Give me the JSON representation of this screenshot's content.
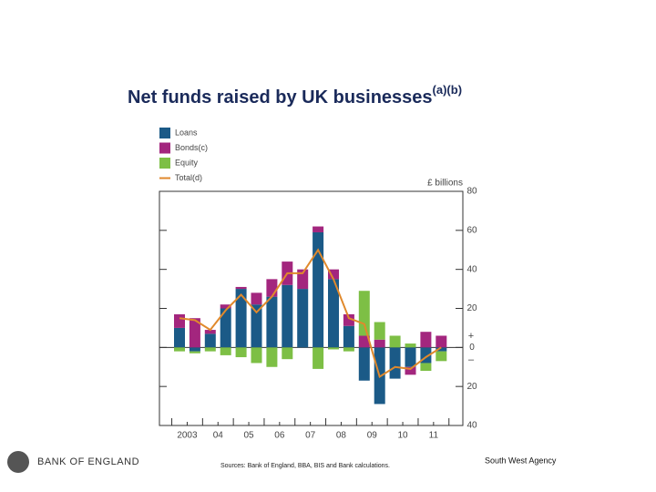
{
  "chart_data": {
    "type": "bar",
    "title": "Net funds raised by UK businesses",
    "title_note": "(a)(b)",
    "y_axis_label": "£ billions",
    "sign_labels": [
      "+",
      "–"
    ],
    "categories": [
      "2003",
      null,
      "04",
      null,
      "05",
      null,
      "06",
      null,
      "07",
      null,
      "08",
      null,
      "09",
      null,
      "10",
      null,
      "11",
      null
    ],
    "series": [
      {
        "name": "Loans",
        "type": "bar",
        "color": "#1b5a87",
        "values": [
          10,
          -2,
          7,
          20,
          30,
          22,
          26,
          32,
          30,
          59,
          35,
          11,
          -17,
          -29,
          -16,
          -10,
          -8,
          -2
        ]
      },
      {
        "name": "Bonds(c)",
        "type": "bar",
        "color": "#a3267e",
        "values": [
          7,
          15,
          2,
          2,
          1,
          6,
          9,
          12,
          10,
          3,
          5,
          6,
          6,
          4,
          0,
          -4,
          8,
          6
        ]
      },
      {
        "name": "Equity",
        "type": "bar",
        "color": "#7dbf45",
        "values": [
          -2,
          -1,
          -2,
          -4,
          -5,
          -8,
          -10,
          -6,
          0,
          -11,
          -1,
          -2,
          23,
          9,
          6,
          2,
          -4,
          -5
        ]
      },
      {
        "name": "Total(d)",
        "type": "line",
        "color": "#e0892c",
        "values": [
          15,
          14,
          9,
          19,
          27,
          18,
          26,
          38,
          38,
          50,
          35,
          15,
          12,
          -15,
          -10,
          -11,
          -5,
          0
        ]
      }
    ],
    "ylim": [
      -40,
      80
    ],
    "yticks": [
      {
        "value": -40,
        "label": "40"
      },
      {
        "value": -20,
        "label": "20"
      },
      0,
      20,
      40,
      60,
      80
    ],
    "footer": {
      "sources": "Sources: Bank of England, BBA, BIS and Bank calculations.",
      "logo_text": "BANK OF ENGLAND",
      "agency": "South West Agency"
    }
  }
}
